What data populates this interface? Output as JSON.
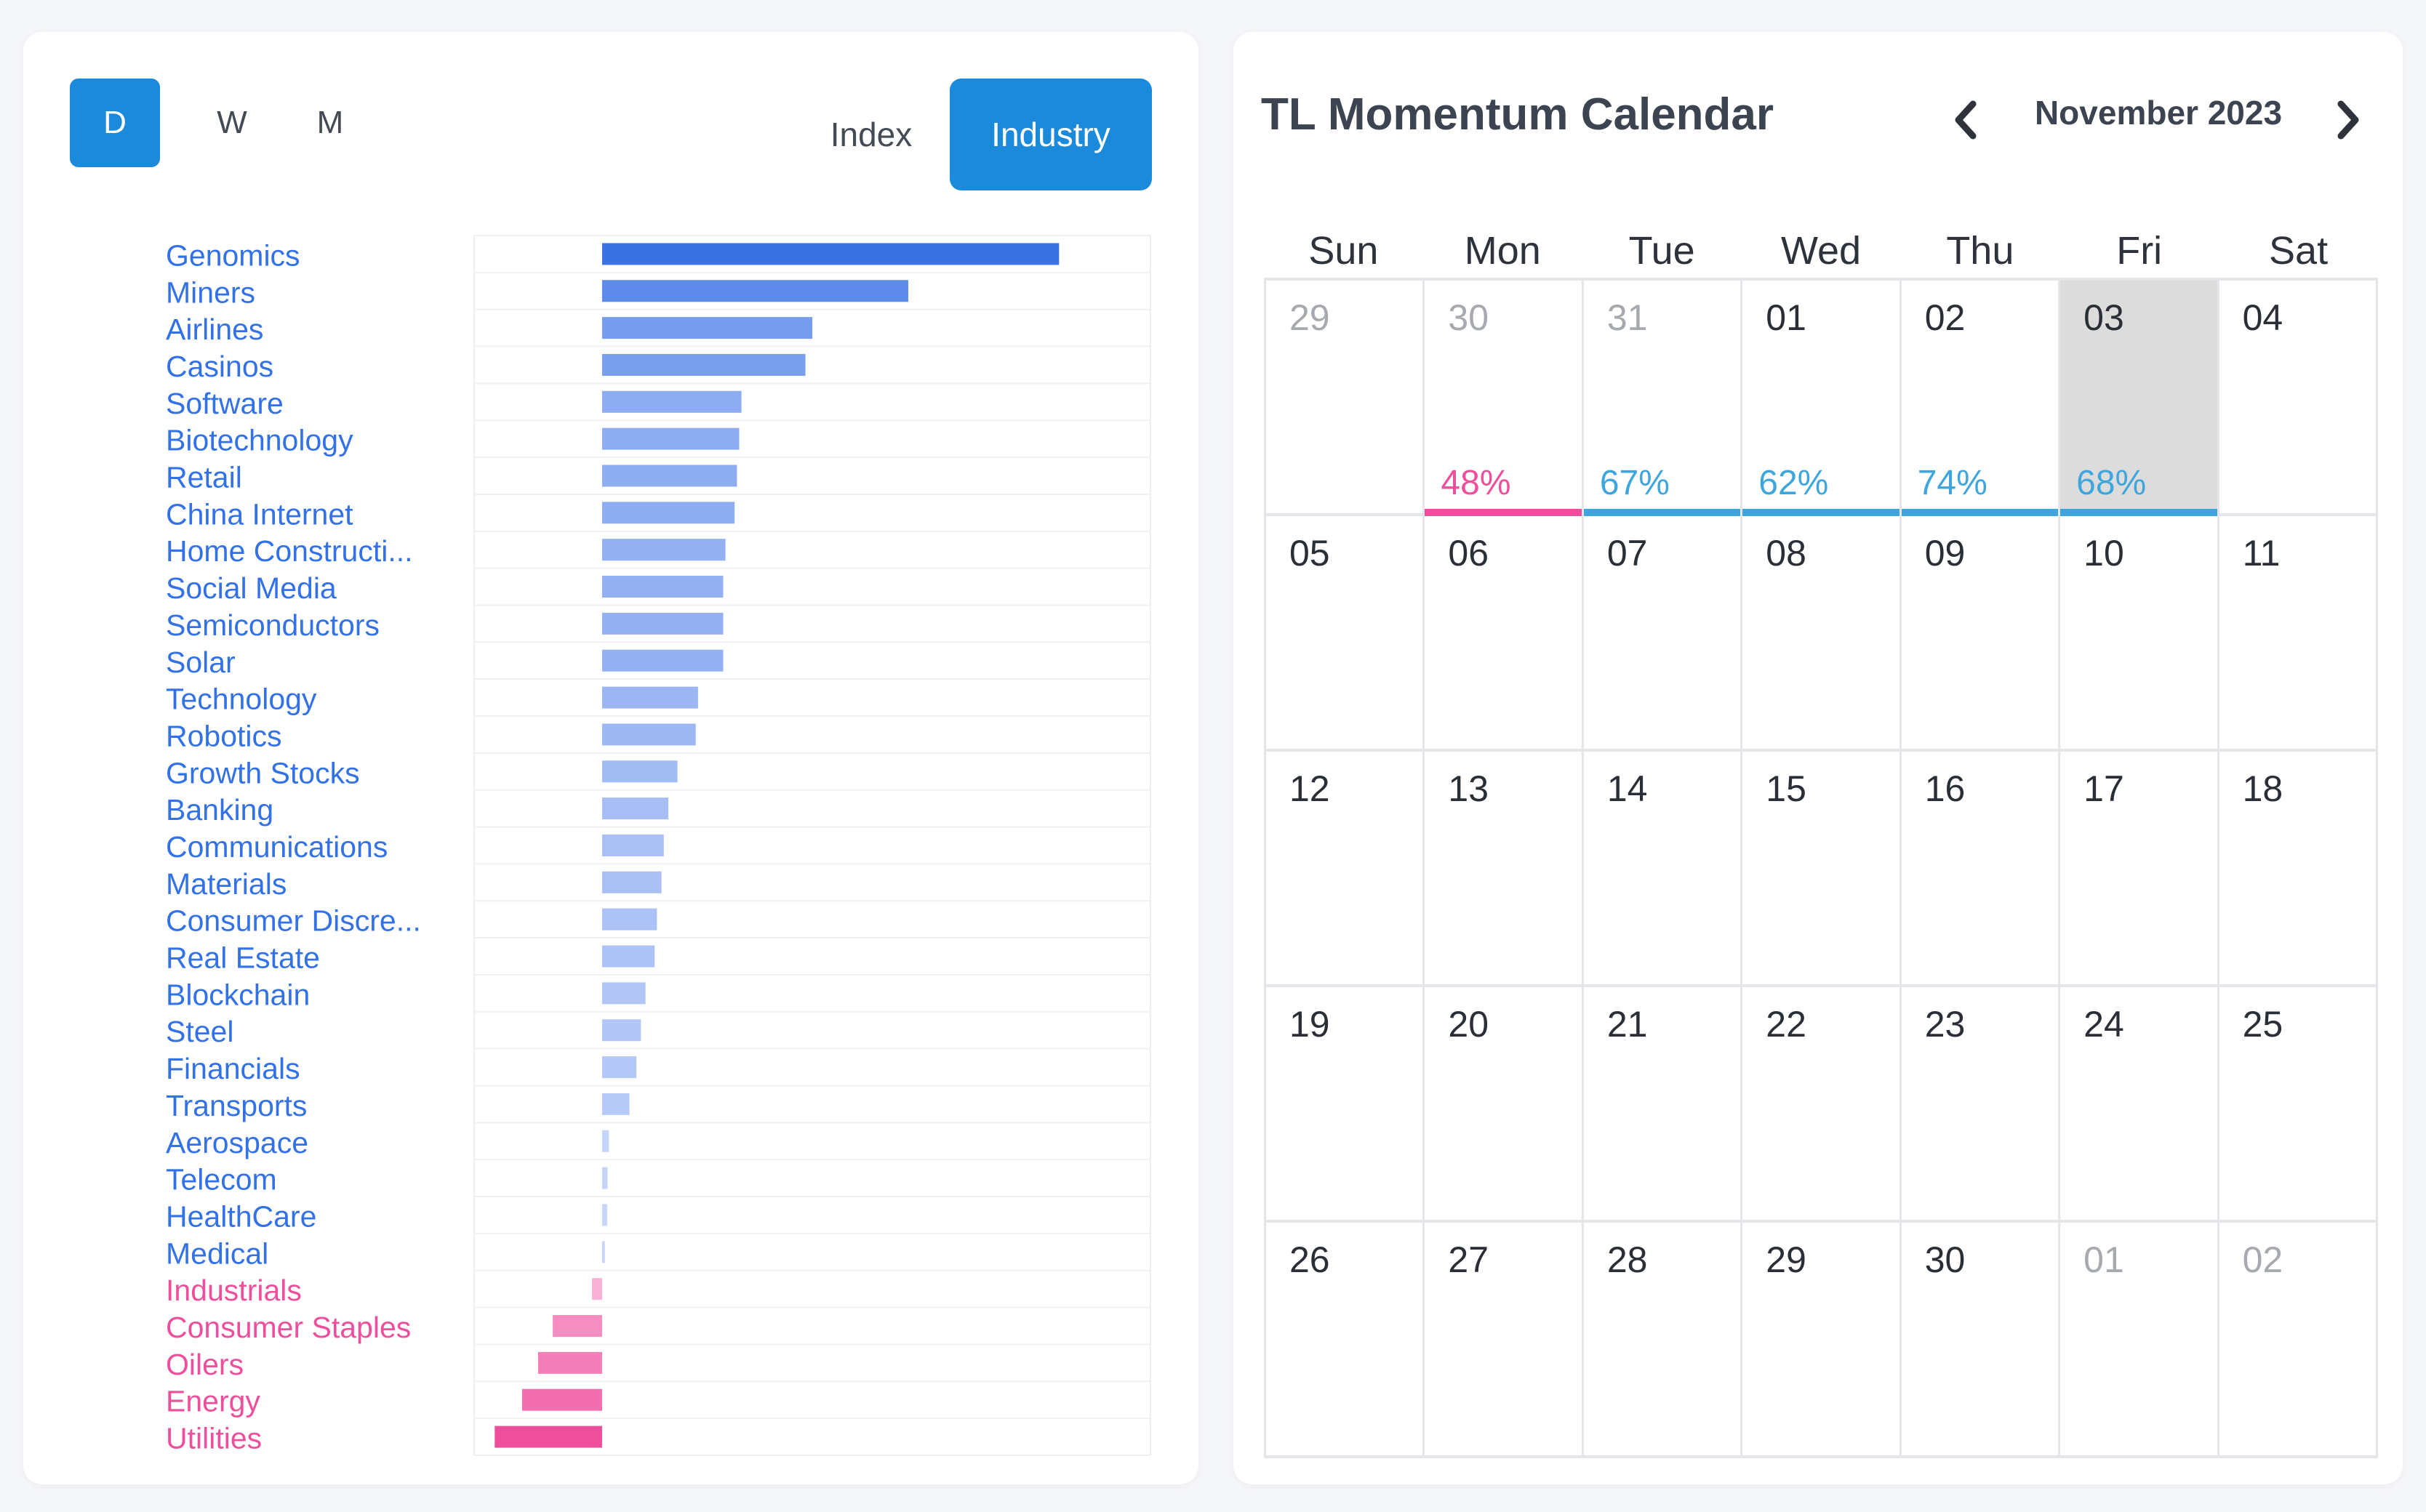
{
  "timeframes": [
    {
      "label": "D",
      "active": true
    },
    {
      "label": "W",
      "active": false
    },
    {
      "label": "M",
      "active": false
    }
  ],
  "views": [
    {
      "label": "Index",
      "active": false
    },
    {
      "label": "Industry",
      "active": true
    }
  ],
  "colors": {
    "accent": "#1c8adb",
    "positive_strong": "#3a72e4",
    "positive_light": "#cdd9fb",
    "negative_strong": "#ee4f9d",
    "negative_light": "#fcb6d8",
    "label_positive": "#3271e6",
    "label_negative": "#ee4f9d",
    "momentum_positive": "#3ea6dd",
    "momentum_negative": "#ee4f9d"
  },
  "chart_data": {
    "type": "bar",
    "orientation": "horizontal",
    "categories": [
      "Genomics",
      "Miners",
      "Airlines",
      "Casinos",
      "Software",
      "Biotechnology",
      "Retail",
      "China Internet",
      "Home Constructi...",
      "Social Media",
      "Semiconductors",
      "Solar",
      "Technology",
      "Robotics",
      "Growth Stocks",
      "Banking",
      "Communications",
      "Materials",
      "Consumer Discre...",
      "Real Estate",
      "Blockchain",
      "Steel",
      "Financials",
      "Transports",
      "Aerospace",
      "Telecom",
      "HealthCare",
      "Medical",
      "Industrials",
      "Consumer Staples",
      "Oilers",
      "Energy",
      "Utilities"
    ],
    "values": [
      100,
      67,
      46,
      44.5,
      30.5,
      30,
      29.5,
      29,
      27,
      26.5,
      26.5,
      26.5,
      21,
      20.5,
      16.5,
      14.5,
      13.5,
      13,
      12,
      11.5,
      9.5,
      8.5,
      7.5,
      6,
      1.5,
      1.2,
      1.1,
      0.6,
      -2.2,
      -10.8,
      -14,
      -17.5,
      -23.5
    ],
    "xlim": [
      -28,
      120
    ],
    "grid": true,
    "legend": "none"
  },
  "calendar": {
    "title": "TL Momentum Calendar",
    "month_label": "November 2023",
    "prev_icon": "chevron-left-icon",
    "next_icon": "chevron-right-icon",
    "weekdays": [
      "Sun",
      "Mon",
      "Tue",
      "Wed",
      "Thu",
      "Fri",
      "Sat"
    ],
    "weeks": [
      [
        {
          "day": "29",
          "muted": true
        },
        {
          "day": "30",
          "muted": true,
          "momentum": "48%",
          "trend": "neg"
        },
        {
          "day": "31",
          "muted": true,
          "momentum": "67%",
          "trend": "pos"
        },
        {
          "day": "01",
          "muted": false,
          "momentum": "62%",
          "trend": "pos"
        },
        {
          "day": "02",
          "muted": false,
          "momentum": "74%",
          "trend": "pos"
        },
        {
          "day": "03",
          "muted": false,
          "momentum": "68%",
          "trend": "pos",
          "highlight": true
        },
        {
          "day": "04",
          "muted": false
        }
      ],
      [
        {
          "day": "05",
          "muted": false
        },
        {
          "day": "06",
          "muted": false
        },
        {
          "day": "07",
          "muted": false
        },
        {
          "day": "08",
          "muted": false
        },
        {
          "day": "09",
          "muted": false
        },
        {
          "day": "10",
          "muted": false
        },
        {
          "day": "11",
          "muted": false
        }
      ],
      [
        {
          "day": "12",
          "muted": false
        },
        {
          "day": "13",
          "muted": false
        },
        {
          "day": "14",
          "muted": false
        },
        {
          "day": "15",
          "muted": false
        },
        {
          "day": "16",
          "muted": false
        },
        {
          "day": "17",
          "muted": false
        },
        {
          "day": "18",
          "muted": false
        }
      ],
      [
        {
          "day": "19",
          "muted": false
        },
        {
          "day": "20",
          "muted": false
        },
        {
          "day": "21",
          "muted": false
        },
        {
          "day": "22",
          "muted": false
        },
        {
          "day": "23",
          "muted": false
        },
        {
          "day": "24",
          "muted": false
        },
        {
          "day": "25",
          "muted": false
        }
      ],
      [
        {
          "day": "26",
          "muted": false
        },
        {
          "day": "27",
          "muted": false
        },
        {
          "day": "28",
          "muted": false
        },
        {
          "day": "29",
          "muted": false
        },
        {
          "day": "30",
          "muted": false
        },
        {
          "day": "01",
          "muted": true
        },
        {
          "day": "02",
          "muted": true
        }
      ]
    ]
  }
}
